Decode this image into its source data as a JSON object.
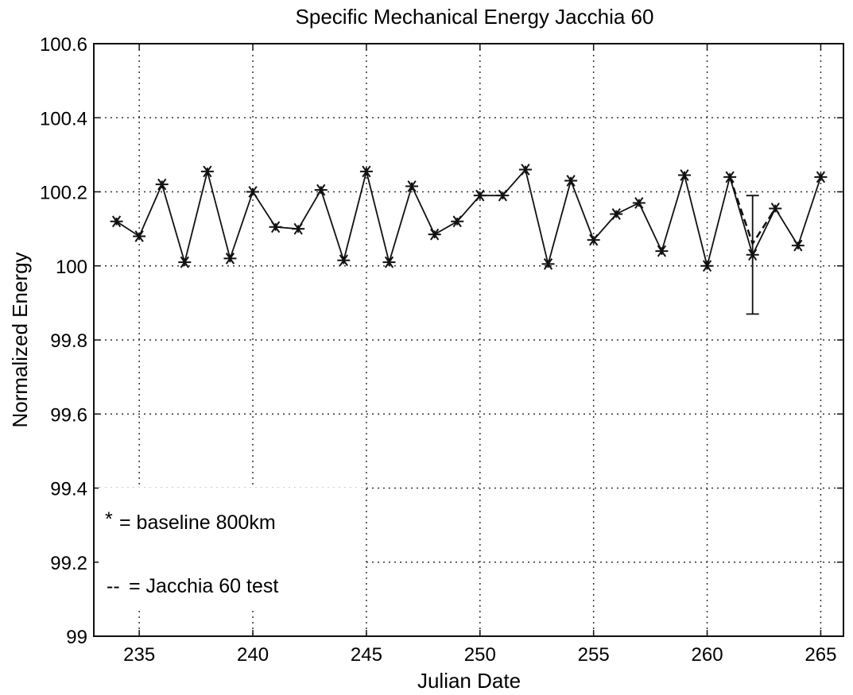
{
  "chart_data": {
    "type": "line",
    "title": "Specific Mechanical Energy Jacchia 60",
    "xlabel": "Julian Date",
    "ylabel": "Normalized Energy",
    "xlim": [
      233,
      266
    ],
    "ylim": [
      99,
      100.6
    ],
    "xticks": [
      235,
      240,
      245,
      250,
      255,
      260,
      265
    ],
    "yticks": [
      99,
      99.2,
      99.4,
      99.6,
      99.8,
      100,
      100.2,
      100.4,
      100.6
    ],
    "grid": true,
    "legend_position": "bottom-left",
    "legend": [
      {
        "marker": "*",
        "label": "= baseline 800km"
      },
      {
        "marker": "--",
        "label": "= Jacchia 60 test"
      }
    ],
    "series": [
      {
        "style": "solid line with asterisk markers",
        "x": [
          234,
          235,
          236,
          237,
          238,
          239,
          240,
          241,
          242,
          243,
          244,
          245,
          246,
          247,
          248,
          249,
          250,
          251,
          252,
          253,
          254,
          255,
          256,
          257,
          258,
          259,
          260,
          261,
          262,
          263,
          264,
          265
        ],
        "y": [
          100.12,
          100.08,
          100.22,
          100.01,
          100.255,
          100.02,
          100.2,
          100.105,
          100.1,
          100.205,
          100.015,
          100.255,
          100.01,
          100.215,
          100.085,
          100.12,
          100.19,
          100.19,
          100.26,
          100.005,
          100.23,
          100.07,
          100.14,
          100.17,
          100.04,
          100.245,
          100.0,
          100.24,
          100.03,
          100.155,
          100.055,
          100.24
        ]
      },
      {
        "style": "dashed line",
        "x": [
          261,
          262,
          263
        ],
        "y": [
          100.24,
          100.06,
          100.155
        ]
      }
    ],
    "error_bar": {
      "x": 262,
      "y": 100.03,
      "low": 99.87,
      "high": 100.19
    }
  }
}
